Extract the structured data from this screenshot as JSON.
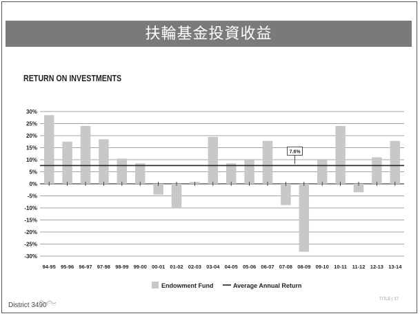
{
  "slide": {
    "banner_title": "扶輪基金投資收益",
    "footer_left": "District 3490",
    "footer_right": "TITLE | 37"
  },
  "colors": {
    "banner": "#7a7a7a",
    "bar": "#c8c8c8",
    "avg_line": "#222222",
    "grid": "#444444"
  },
  "chart_data": {
    "type": "bar",
    "title": "RETURN ON INVESTMENTS",
    "categories": [
      "94-95",
      "95-96",
      "96-97",
      "97-98",
      "98-99",
      "99-00",
      "00-01",
      "01-02",
      "02-03",
      "03-04",
      "04-05",
      "05-06",
      "06-07",
      "07-08",
      "08-09",
      "09-10",
      "10-11",
      "11-12",
      "12-13",
      "13-14"
    ],
    "series": [
      {
        "name": "Endowment Fund",
        "values": [
          28.5,
          17.5,
          24,
          18.5,
          10.5,
          8.5,
          -4.5,
          -10,
          0.8,
          19.5,
          8.5,
          9.8,
          17.8,
          -8.8,
          -28.2,
          9.8,
          24,
          -3.5,
          11,
          17.8
        ]
      },
      {
        "name": "Average Annual Return",
        "type": "line",
        "value": 7.6
      }
    ],
    "annotation": "7.6%",
    "yticks": [
      "30%",
      "25%",
      "20%",
      "15%",
      "10%",
      "5%",
      "0%",
      "-5%",
      "-10%",
      "-15%",
      "-20%",
      "-25%",
      "-30%"
    ],
    "ylim": [
      -30,
      30
    ],
    "grid": true,
    "legend": "bottom-center"
  }
}
